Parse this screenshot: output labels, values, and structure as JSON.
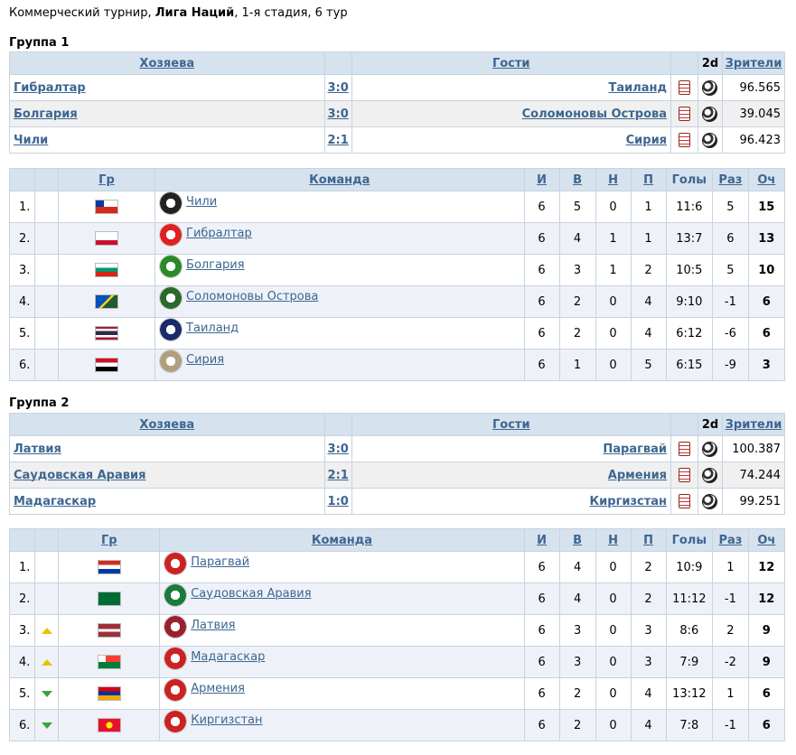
{
  "header": {
    "prefix": "Коммерческий турнир, ",
    "tournament": "Лига Наций",
    "suffix": ", 1-я стадия, 6 тур"
  },
  "matches_headers": {
    "home": "Хозяева",
    "away": "Гости",
    "twod": "2d",
    "viewers": "Зрители"
  },
  "standings_headers": {
    "gr": "Гр",
    "team": "Команда",
    "p": "И",
    "w": "В",
    "d": "Н",
    "l": "П",
    "goals": "Голы",
    "diff": "Раз",
    "pts": "Оч"
  },
  "groups": [
    {
      "title": "Группа 1",
      "matches": [
        {
          "home": "Гибралтар",
          "score": "3:0",
          "away": "Таиланд",
          "viewers": "96.565"
        },
        {
          "home": "Болгария",
          "score": "3:0",
          "away": "Соломоновы Острова",
          "viewers": "39.045"
        },
        {
          "home": "Чили",
          "score": "2:1",
          "away": "Сирия",
          "viewers": "96.423"
        }
      ],
      "standings": [
        {
          "pos": "1.",
          "team": "Чили",
          "flag": "chile",
          "logo": "#222",
          "trend": "",
          "p": "6",
          "w": "5",
          "d": "0",
          "l": "1",
          "goals": "11:6",
          "diff": "5",
          "pts": "15"
        },
        {
          "pos": "2.",
          "team": "Гибралтар",
          "flag": "gibraltar",
          "logo": "#d22",
          "trend": "",
          "p": "6",
          "w": "4",
          "d": "1",
          "l": "1",
          "goals": "13:7",
          "diff": "6",
          "pts": "13"
        },
        {
          "pos": "3.",
          "team": "Болгария",
          "flag": "bulgaria",
          "logo": "#2a8a2a",
          "trend": "",
          "p": "6",
          "w": "3",
          "d": "1",
          "l": "2",
          "goals": "10:5",
          "diff": "5",
          "pts": "10"
        },
        {
          "pos": "4.",
          "team": "Соломоновы Острова",
          "flag": "solomon",
          "logo": "#2a6a2a",
          "trend": "",
          "p": "6",
          "w": "2",
          "d": "0",
          "l": "4",
          "goals": "9:10",
          "diff": "-1",
          "pts": "6"
        },
        {
          "pos": "5.",
          "team": "Таиланд",
          "flag": "thailand",
          "logo": "#1a2a6a",
          "trend": "",
          "p": "6",
          "w": "2",
          "d": "0",
          "l": "4",
          "goals": "6:12",
          "diff": "-6",
          "pts": "6"
        },
        {
          "pos": "6.",
          "team": "Сирия",
          "flag": "syria",
          "logo": "#b0a080",
          "trend": "",
          "p": "6",
          "w": "1",
          "d": "0",
          "l": "5",
          "goals": "6:15",
          "diff": "-9",
          "pts": "3"
        }
      ]
    },
    {
      "title": "Группа 2",
      "matches": [
        {
          "home": "Латвия",
          "score": "3:0",
          "away": "Парагвай",
          "viewers": "100.387"
        },
        {
          "home": "Саудовская Аравия",
          "score": "2:1",
          "away": "Армения",
          "viewers": "74.244"
        },
        {
          "home": "Мадагаскар",
          "score": "1:0",
          "away": "Киргизстан",
          "viewers": "99.251"
        }
      ],
      "standings": [
        {
          "pos": "1.",
          "team": "Парагвай",
          "flag": "paraguay",
          "logo": "#c22",
          "trend": "",
          "p": "6",
          "w": "4",
          "d": "0",
          "l": "2",
          "goals": "10:9",
          "diff": "1",
          "pts": "12"
        },
        {
          "pos": "2.",
          "team": "Саудовская Аравия",
          "flag": "saudi",
          "logo": "#1a7a3a",
          "trend": "",
          "p": "6",
          "w": "4",
          "d": "0",
          "l": "2",
          "goals": "11:12",
          "diff": "-1",
          "pts": "12"
        },
        {
          "pos": "3.",
          "team": "Латвия",
          "flag": "latvia",
          "logo": "#9a2030",
          "trend": "up",
          "p": "6",
          "w": "3",
          "d": "0",
          "l": "3",
          "goals": "8:6",
          "diff": "2",
          "pts": "9"
        },
        {
          "pos": "4.",
          "team": "Мадагаскар",
          "flag": "madagascar",
          "logo": "#c22",
          "trend": "up",
          "p": "6",
          "w": "3",
          "d": "0",
          "l": "3",
          "goals": "7:9",
          "diff": "-2",
          "pts": "9"
        },
        {
          "pos": "5.",
          "team": "Армения",
          "flag": "armenia",
          "logo": "#c22",
          "trend": "down",
          "p": "6",
          "w": "2",
          "d": "0",
          "l": "4",
          "goals": "13:12",
          "diff": "1",
          "pts": "6"
        },
        {
          "pos": "6.",
          "team": "Киргизстан",
          "flag": "kyrgyzstan",
          "logo": "#c22",
          "trend": "down",
          "p": "6",
          "w": "2",
          "d": "0",
          "l": "4",
          "goals": "7:8",
          "diff": "-1",
          "pts": "6"
        }
      ]
    }
  ]
}
